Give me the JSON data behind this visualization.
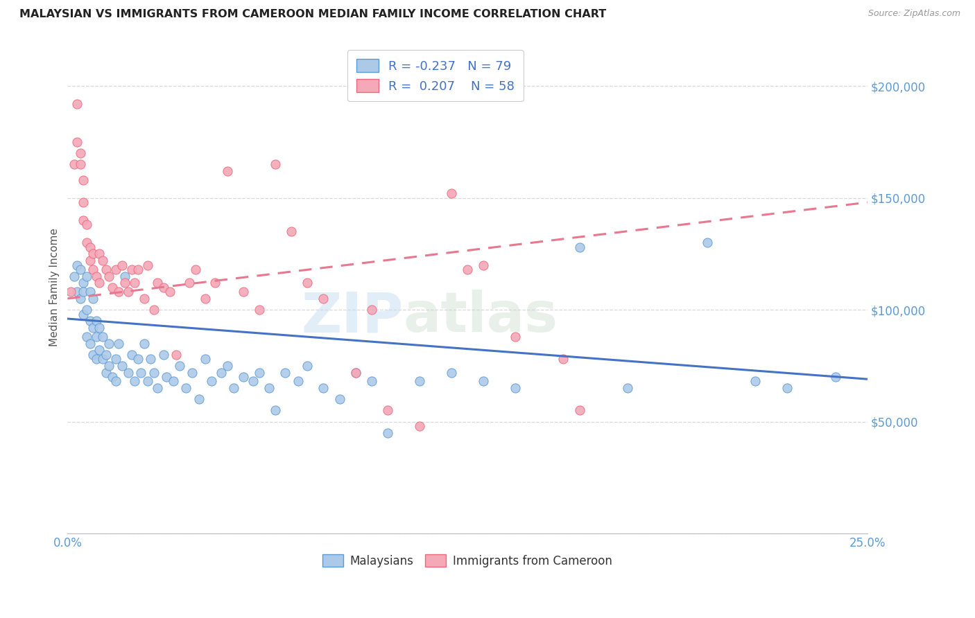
{
  "title": "MALAYSIAN VS IMMIGRANTS FROM CAMEROON MEDIAN FAMILY INCOME CORRELATION CHART",
  "source": "Source: ZipAtlas.com",
  "ylabel": "Median Family Income",
  "xlim": [
    0.0,
    0.25
  ],
  "ylim": [
    0,
    220000
  ],
  "yticks": [
    0,
    50000,
    100000,
    150000,
    200000
  ],
  "ytick_labels": [
    "",
    "$50,000",
    "$100,000",
    "$150,000",
    "$200,000"
  ],
  "xticks": [
    0.0,
    0.025,
    0.05,
    0.075,
    0.1,
    0.125,
    0.15,
    0.175,
    0.2,
    0.225,
    0.25
  ],
  "xtick_labels": [
    "0.0%",
    "",
    "",
    "",
    "",
    "",
    "",
    "",
    "",
    "",
    "25.0%"
  ],
  "bg_color": "#ffffff",
  "grid_color": "#d8d8d8",
  "blue_fill": "#adc9e8",
  "pink_fill": "#f4a8b8",
  "blue_edge": "#5b9bd5",
  "pink_edge": "#f06878",
  "blue_line": "#4472c4",
  "pink_line": "#e87890",
  "legend_R_blue": "-0.237",
  "legend_N_blue": "79",
  "legend_R_pink": "0.207",
  "legend_N_pink": "58",
  "blue_trend_x0": 0.0,
  "blue_trend_x1": 0.25,
  "blue_trend_y0": 96000,
  "blue_trend_y1": 69000,
  "pink_trend_x0": 0.0,
  "pink_trend_x1": 0.25,
  "pink_trend_y0": 105000,
  "pink_trend_y1": 148000,
  "blue_scatter_x": [
    0.002,
    0.003,
    0.003,
    0.004,
    0.004,
    0.005,
    0.005,
    0.005,
    0.006,
    0.006,
    0.006,
    0.007,
    0.007,
    0.007,
    0.008,
    0.008,
    0.008,
    0.009,
    0.009,
    0.009,
    0.01,
    0.01,
    0.011,
    0.011,
    0.012,
    0.012,
    0.013,
    0.013,
    0.014,
    0.015,
    0.015,
    0.016,
    0.017,
    0.018,
    0.019,
    0.02,
    0.021,
    0.022,
    0.023,
    0.024,
    0.025,
    0.026,
    0.027,
    0.028,
    0.03,
    0.031,
    0.033,
    0.035,
    0.037,
    0.039,
    0.041,
    0.043,
    0.045,
    0.048,
    0.05,
    0.052,
    0.055,
    0.058,
    0.06,
    0.063,
    0.065,
    0.068,
    0.072,
    0.075,
    0.08,
    0.085,
    0.09,
    0.095,
    0.1,
    0.11,
    0.12,
    0.13,
    0.14,
    0.16,
    0.175,
    0.2,
    0.215,
    0.225,
    0.24
  ],
  "blue_scatter_y": [
    115000,
    120000,
    108000,
    105000,
    118000,
    112000,
    98000,
    108000,
    115000,
    100000,
    88000,
    95000,
    108000,
    85000,
    92000,
    80000,
    105000,
    88000,
    78000,
    95000,
    82000,
    92000,
    78000,
    88000,
    80000,
    72000,
    85000,
    75000,
    70000,
    78000,
    68000,
    85000,
    75000,
    115000,
    72000,
    80000,
    68000,
    78000,
    72000,
    85000,
    68000,
    78000,
    72000,
    65000,
    80000,
    70000,
    68000,
    75000,
    65000,
    72000,
    60000,
    78000,
    68000,
    72000,
    75000,
    65000,
    70000,
    68000,
    72000,
    65000,
    55000,
    72000,
    68000,
    75000,
    65000,
    60000,
    72000,
    68000,
    45000,
    68000,
    72000,
    68000,
    65000,
    128000,
    65000,
    130000,
    68000,
    65000,
    70000
  ],
  "pink_scatter_x": [
    0.001,
    0.002,
    0.003,
    0.003,
    0.004,
    0.004,
    0.005,
    0.005,
    0.005,
    0.006,
    0.006,
    0.007,
    0.007,
    0.008,
    0.008,
    0.009,
    0.01,
    0.01,
    0.011,
    0.012,
    0.013,
    0.014,
    0.015,
    0.016,
    0.017,
    0.018,
    0.019,
    0.02,
    0.021,
    0.022,
    0.024,
    0.025,
    0.027,
    0.028,
    0.03,
    0.032,
    0.034,
    0.038,
    0.04,
    0.043,
    0.046,
    0.05,
    0.055,
    0.06,
    0.065,
    0.07,
    0.075,
    0.08,
    0.09,
    0.095,
    0.1,
    0.11,
    0.12,
    0.125,
    0.13,
    0.14,
    0.155,
    0.16
  ],
  "pink_scatter_y": [
    108000,
    165000,
    192000,
    175000,
    170000,
    165000,
    158000,
    148000,
    140000,
    138000,
    130000,
    128000,
    122000,
    118000,
    125000,
    115000,
    125000,
    112000,
    122000,
    118000,
    115000,
    110000,
    118000,
    108000,
    120000,
    112000,
    108000,
    118000,
    112000,
    118000,
    105000,
    120000,
    100000,
    112000,
    110000,
    108000,
    80000,
    112000,
    118000,
    105000,
    112000,
    162000,
    108000,
    100000,
    165000,
    135000,
    112000,
    105000,
    72000,
    100000,
    55000,
    48000,
    152000,
    118000,
    120000,
    88000,
    78000,
    55000
  ],
  "watermark_zip": "ZIP",
  "watermark_atlas": "atlas"
}
